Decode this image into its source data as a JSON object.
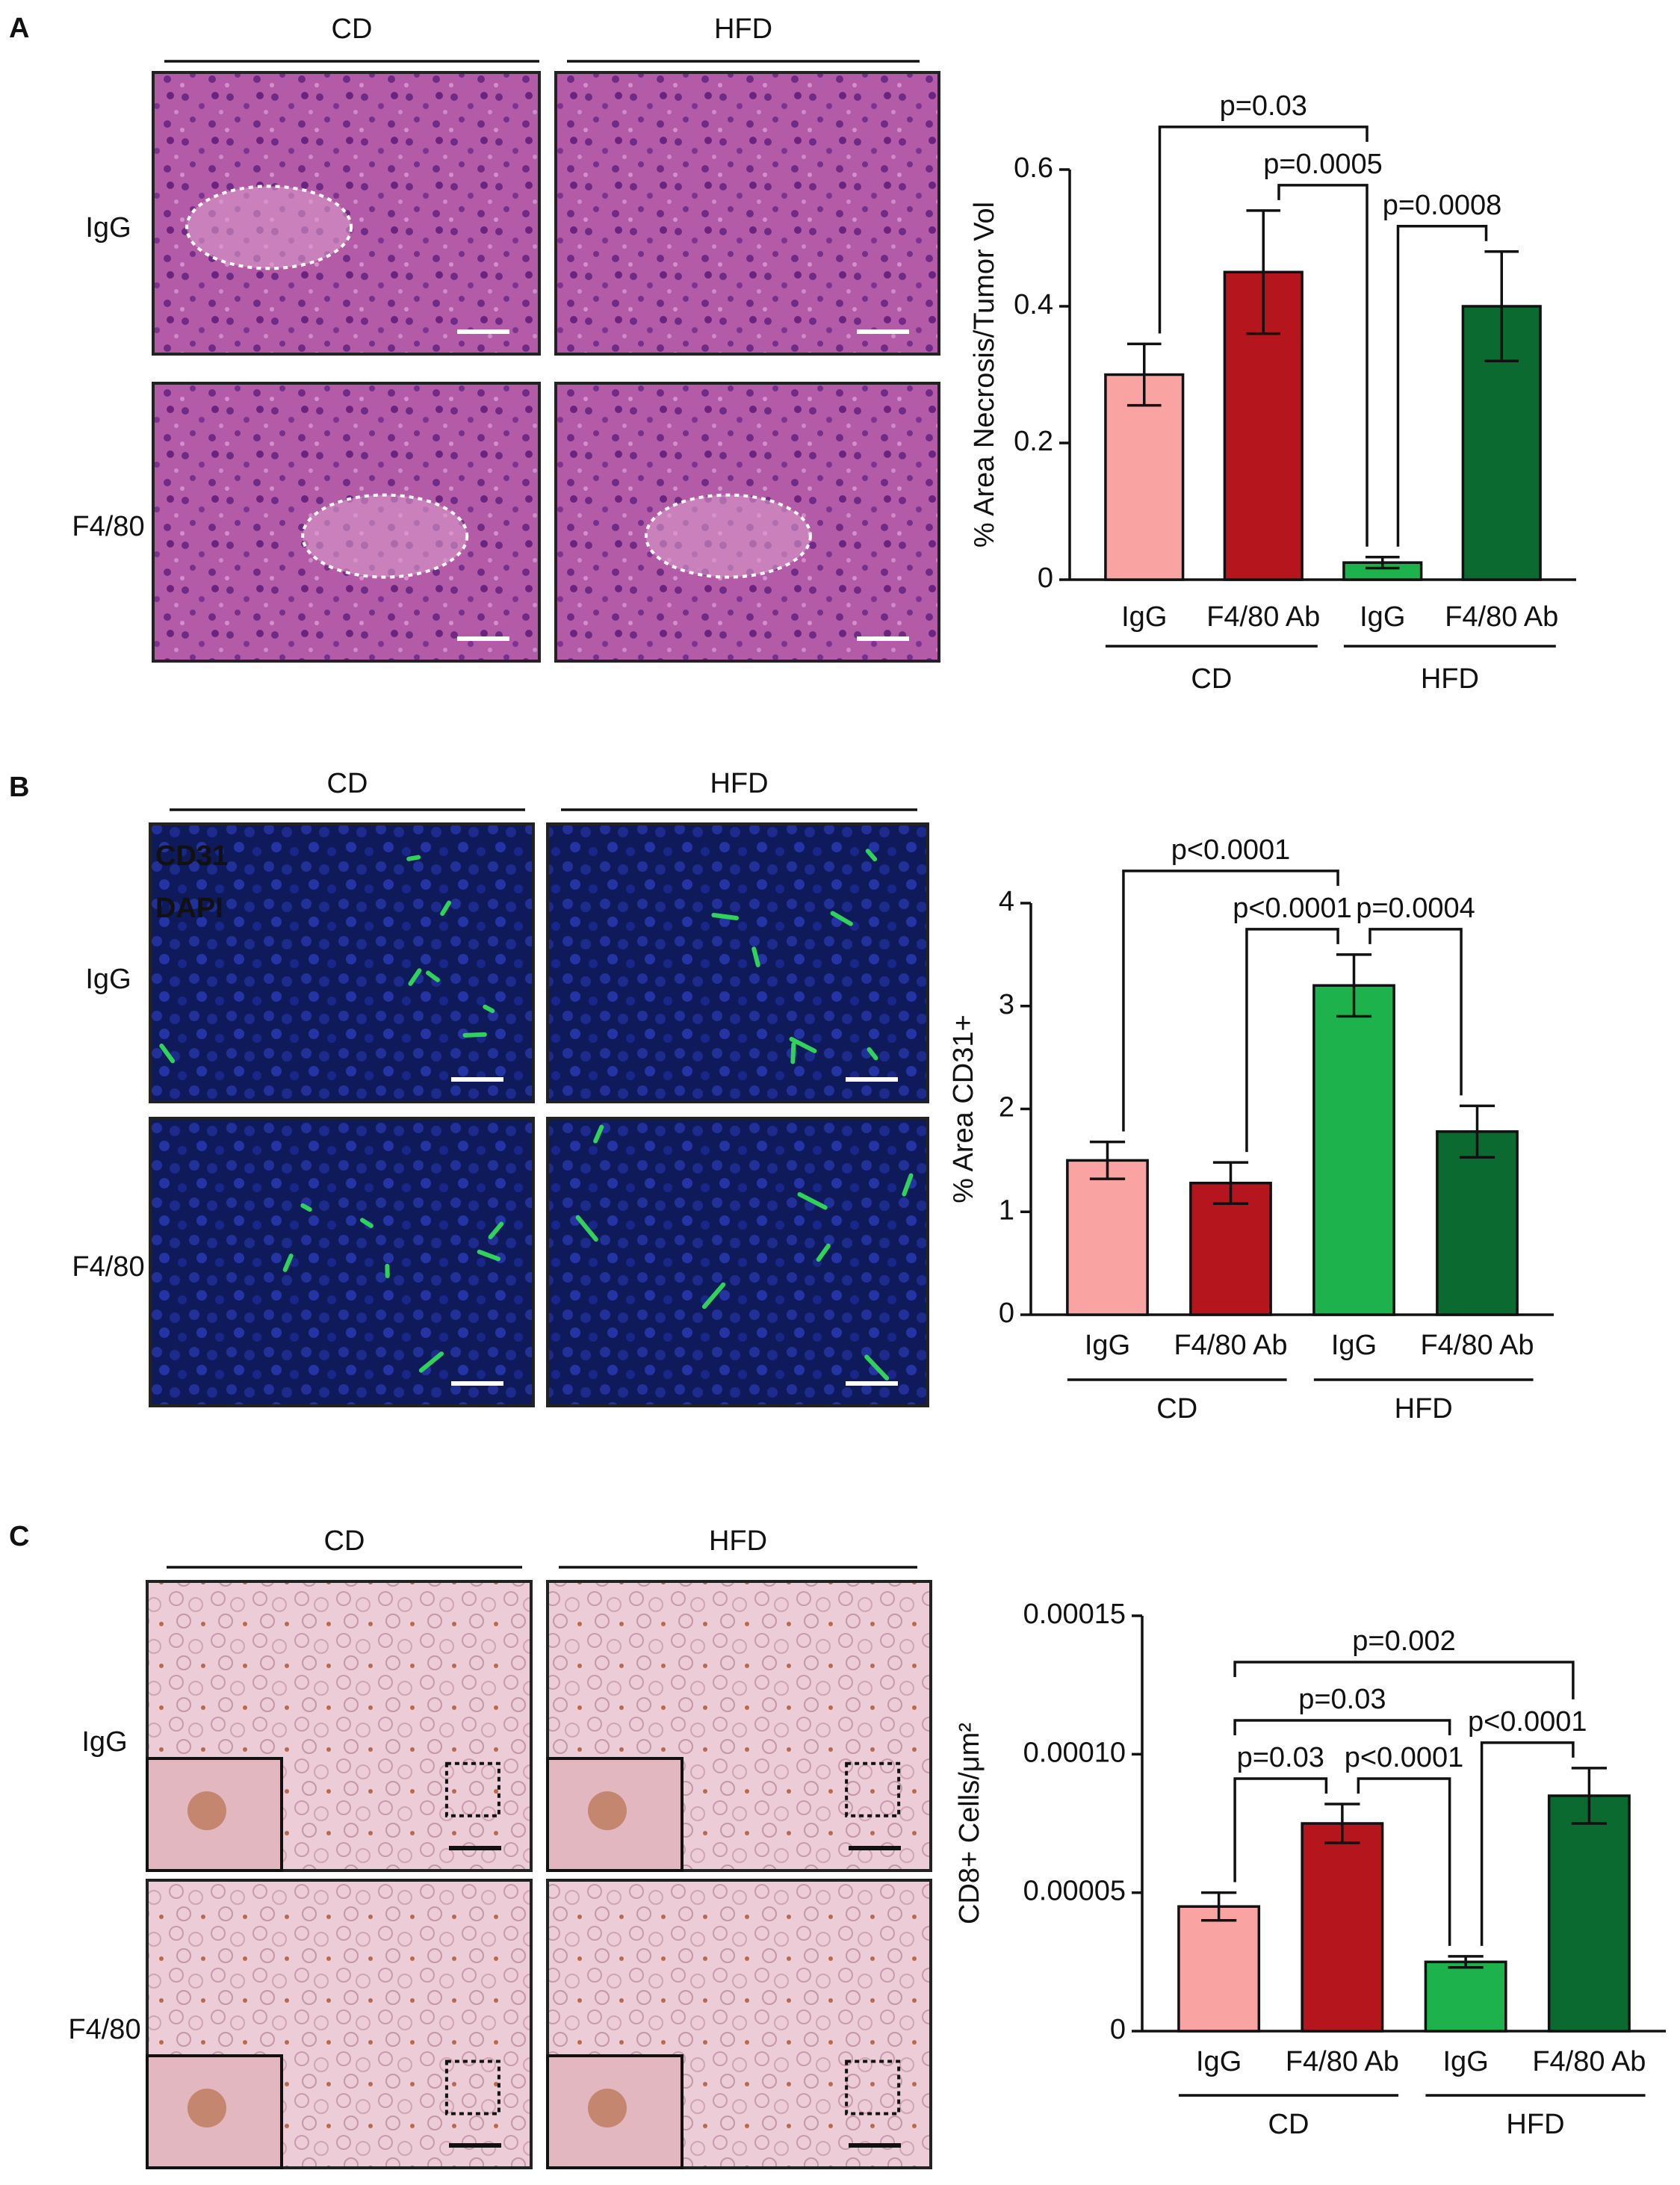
{
  "panels": [
    {
      "label": "A",
      "columns": [
        "CD",
        "HFD"
      ],
      "rows": [
        "IgG",
        "F4/80"
      ]
    },
    {
      "label": "B",
      "columns": [
        "CD",
        "HFD"
      ],
      "rows": [
        "IgG",
        "F4/80"
      ],
      "stains": [
        {
          "name": "CD31",
          "color": "#22b04c"
        },
        {
          "name": "DAPI",
          "color": "#1f5fb8"
        }
      ]
    },
    {
      "label": "C",
      "columns": [
        "CD",
        "HFD"
      ],
      "rows": [
        "IgG",
        "F4/80"
      ]
    }
  ],
  "chart_data": [
    {
      "type": "bar",
      "ylabel": "% Area Necrosis/Tumor Vol",
      "categories": [
        "IgG",
        "F4/80 Ab",
        "IgG",
        "F4/80 Ab"
      ],
      "groups": [
        "CD",
        "HFD"
      ],
      "values": [
        0.3,
        0.45,
        0.025,
        0.4
      ],
      "errors": [
        0.045,
        0.09,
        0.008,
        0.08
      ],
      "colors": [
        "#f9a3a3",
        "#b5161d",
        "#1db24b",
        "#0b6a2f"
      ],
      "ylim": [
        0,
        0.6
      ],
      "yticks": [
        0,
        0.2,
        0.4,
        0.6
      ],
      "comparisons": [
        {
          "bars": [
            0,
            2
          ],
          "label": "p=0.03"
        },
        {
          "bars": [
            1,
            2
          ],
          "label": "p=0.0005"
        },
        {
          "bars": [
            2,
            3
          ],
          "label": "p=0.0008"
        }
      ]
    },
    {
      "type": "bar",
      "ylabel": "% Area CD31+",
      "categories": [
        "IgG",
        "F4/80 Ab",
        "IgG",
        "F4/80 Ab"
      ],
      "groups": [
        "CD",
        "HFD"
      ],
      "values": [
        1.5,
        1.28,
        3.2,
        1.78
      ],
      "errors": [
        0.18,
        0.2,
        0.3,
        0.25
      ],
      "colors": [
        "#f9a3a3",
        "#b5161d",
        "#1db24b",
        "#0b6a2f"
      ],
      "ylim": [
        0,
        4
      ],
      "yticks": [
        0,
        1,
        2,
        3,
        4
      ],
      "comparisons": [
        {
          "bars": [
            0,
            2
          ],
          "label": "p<0.0001"
        },
        {
          "bars": [
            1,
            2
          ],
          "label": "p<0.0001"
        },
        {
          "bars": [
            2,
            3
          ],
          "label": "p=0.0004"
        }
      ]
    },
    {
      "type": "bar",
      "ylabel": "CD8+ Cells/μm²",
      "categories": [
        "IgG",
        "F4/80 Ab",
        "IgG",
        "F4/80 Ab"
      ],
      "groups": [
        "CD",
        "HFD"
      ],
      "values": [
        4.5e-05,
        7.5e-05,
        2.5e-05,
        8.5e-05
      ],
      "errors": [
        5e-06,
        7e-06,
        2e-06,
        1e-05
      ],
      "colors": [
        "#f9a3a3",
        "#b5161d",
        "#1db24b",
        "#0b6a2f"
      ],
      "ylim": [
        0,
        0.00015
      ],
      "yticks": [
        0,
        5e-05,
        {
          "value": 0.0001,
          "label": "0.00010"
        },
        0.00015
      ],
      "comparisons": [
        {
          "bars": [
            0,
            3
          ],
          "label": "p=0.002"
        },
        {
          "bars": [
            0,
            2
          ],
          "label": "p=0.03"
        },
        {
          "bars": [
            0,
            1
          ],
          "label": "p=0.03"
        },
        {
          "bars": [
            1,
            2
          ],
          "label": "p<0.0001"
        },
        {
          "bars": [
            2,
            3
          ],
          "label": "p<0.0001"
        }
      ]
    }
  ]
}
